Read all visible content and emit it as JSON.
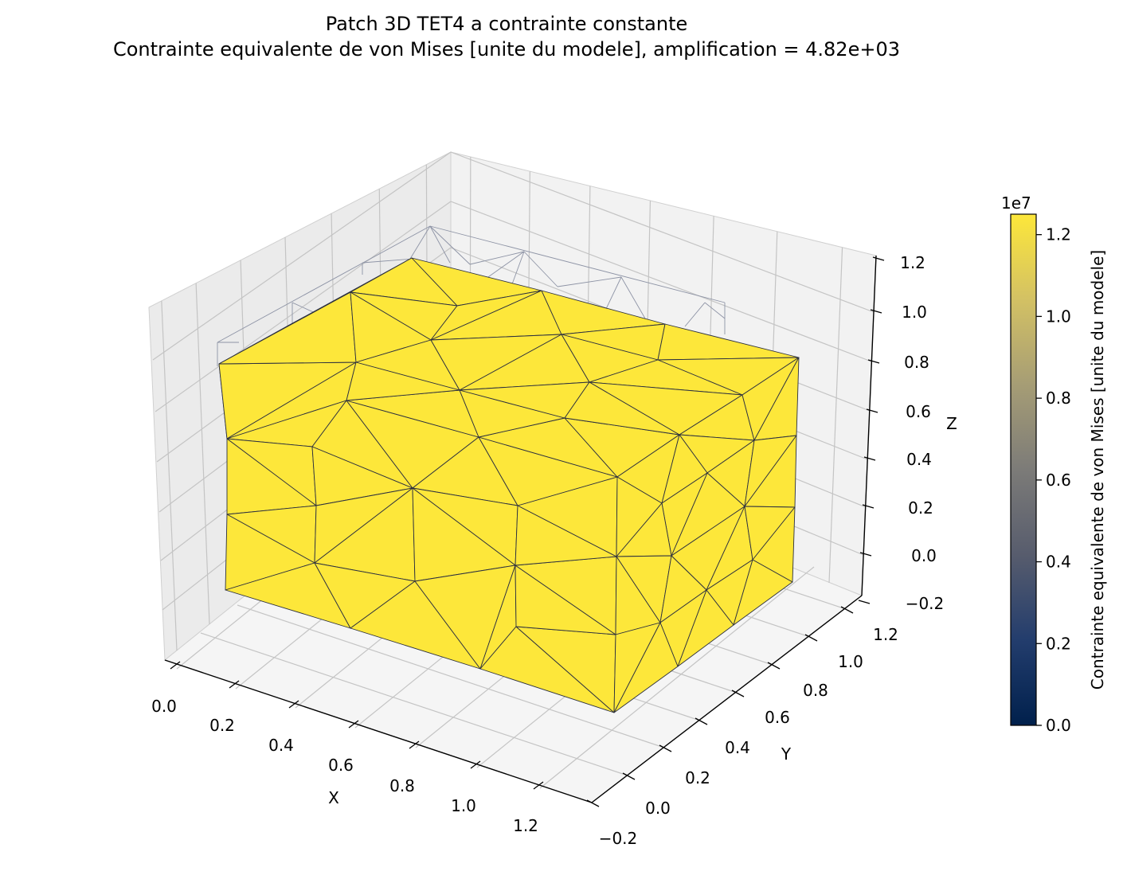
{
  "chart_data": {
    "type": "surface3d",
    "title": "Patch 3D TET4 a contrainte constante",
    "subtitle": "Contrainte equivalente de von Mises [unite du modele], amplification = 4.82e+03",
    "xlabel": "X",
    "ylabel": "Y",
    "zlabel": "Z",
    "xticks": [
      "0.0",
      "0.2",
      "0.4",
      "0.6",
      "0.8",
      "1.0",
      "1.2"
    ],
    "yticks": [
      "−0.2",
      "0.0",
      "0.2",
      "0.4",
      "0.6",
      "0.8",
      "1.0",
      "1.2"
    ],
    "zticks": [
      "−0.2",
      "0.0",
      "0.2",
      "0.4",
      "0.6",
      "0.8",
      "1.0",
      "1.2"
    ],
    "xlim": [
      -0.1,
      1.35
    ],
    "ylim": [
      -0.2,
      1.25
    ],
    "zlim": [
      -0.2,
      1.25
    ],
    "grid": true,
    "field": "von Mises",
    "field_value": 12500000,
    "face_color": "#fde73a",
    "edge_color": "#2b2f3f",
    "undeformed_edge_color": "#8d93a5",
    "colorbar": {
      "label": "Contrainte equivalente de von Mises [unite du modele]",
      "offset_text": "1e7",
      "ticks": [
        "0.0",
        "0.2",
        "0.4",
        "0.6",
        "0.8",
        "1.0",
        "1.2"
      ],
      "min": 0,
      "max": 1.25,
      "colormap": "cividis",
      "colors": [
        "#00204c",
        "#233d6d",
        "#575c6d",
        "#7c7b78",
        "#a69d75",
        "#d3c164",
        "#fde73a"
      ]
    }
  }
}
